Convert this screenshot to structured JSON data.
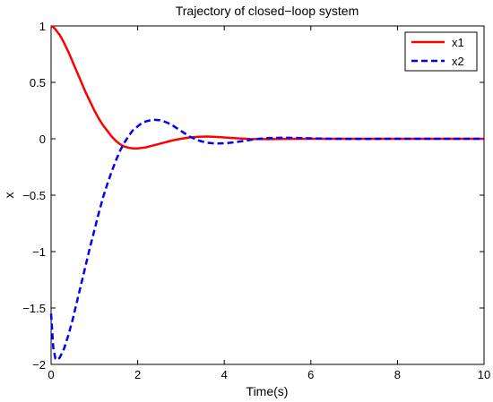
{
  "chart_data": {
    "type": "line",
    "title": "Trajectory of closed−loop system",
    "xlabel": "Time(s)",
    "ylabel": "x",
    "xlim": [
      0,
      10
    ],
    "ylim": [
      -2,
      1
    ],
    "x_ticks": [
      0,
      2,
      4,
      6,
      8,
      10
    ],
    "y_ticks": [
      1,
      0.5,
      0,
      -0.5,
      -1,
      -1.5,
      -2
    ],
    "x_tick_labels": [
      "0",
      "2",
      "4",
      "6",
      "8",
      "10"
    ],
    "y_tick_labels": [
      "1",
      "0.5",
      "0",
      "−0.5",
      "−1",
      "−1.5",
      "−2"
    ],
    "grid": false,
    "legend_position": "top-right",
    "series": [
      {
        "name": "x1",
        "color": "#ff0000",
        "style": "solid",
        "x": [
          0,
          0.05,
          0.1,
          0.2,
          0.3,
          0.4,
          0.5,
          0.6,
          0.7,
          0.8,
          0.9,
          1.0,
          1.1,
          1.2,
          1.3,
          1.4,
          1.5,
          1.6,
          1.7,
          1.8,
          1.9,
          2.0,
          2.2,
          2.4,
          2.6,
          2.8,
          3.0,
          3.2,
          3.4,
          3.6,
          3.8,
          4.0,
          4.3,
          4.6,
          5.0,
          5.5,
          6.0,
          7.0,
          8.0,
          9.0,
          10.0
        ],
        "y": [
          1.0,
          0.99,
          0.97,
          0.92,
          0.85,
          0.77,
          0.68,
          0.59,
          0.5,
          0.41,
          0.33,
          0.25,
          0.18,
          0.12,
          0.07,
          0.02,
          -0.02,
          -0.05,
          -0.07,
          -0.08,
          -0.085,
          -0.085,
          -0.075,
          -0.055,
          -0.035,
          -0.015,
          0.0,
          0.012,
          0.018,
          0.02,
          0.017,
          0.012,
          0.004,
          -0.002,
          -0.003,
          -0.001,
          0.0,
          0.0,
          0.0,
          0.0,
          0.0
        ]
      },
      {
        "name": "x2",
        "color": "#0000ff",
        "style": "dashed",
        "x": [
          0,
          0.05,
          0.1,
          0.15,
          0.2,
          0.3,
          0.4,
          0.5,
          0.6,
          0.7,
          0.8,
          0.9,
          1.0,
          1.1,
          1.2,
          1.3,
          1.4,
          1.5,
          1.6,
          1.7,
          1.8,
          1.9,
          2.0,
          2.1,
          2.2,
          2.3,
          2.4,
          2.5,
          2.6,
          2.7,
          2.8,
          2.9,
          3.0,
          3.2,
          3.4,
          3.6,
          3.8,
          4.0,
          4.2,
          4.4,
          4.6,
          4.8,
          5.0,
          5.3,
          5.6,
          6.0,
          6.5,
          7.0,
          8.0,
          9.0,
          10.0
        ],
        "y": [
          -1.55,
          -1.85,
          -1.95,
          -1.96,
          -1.94,
          -1.86,
          -1.74,
          -1.6,
          -1.44,
          -1.28,
          -1.12,
          -0.96,
          -0.81,
          -0.66,
          -0.52,
          -0.4,
          -0.29,
          -0.19,
          -0.1,
          -0.03,
          0.03,
          0.08,
          0.11,
          0.14,
          0.155,
          0.165,
          0.168,
          0.165,
          0.155,
          0.14,
          0.12,
          0.095,
          0.07,
          0.02,
          -0.015,
          -0.035,
          -0.042,
          -0.04,
          -0.033,
          -0.022,
          -0.01,
          0.0,
          0.006,
          0.009,
          0.008,
          0.004,
          0.0,
          -0.001,
          0.0,
          0.0,
          0.0
        ]
      }
    ]
  }
}
